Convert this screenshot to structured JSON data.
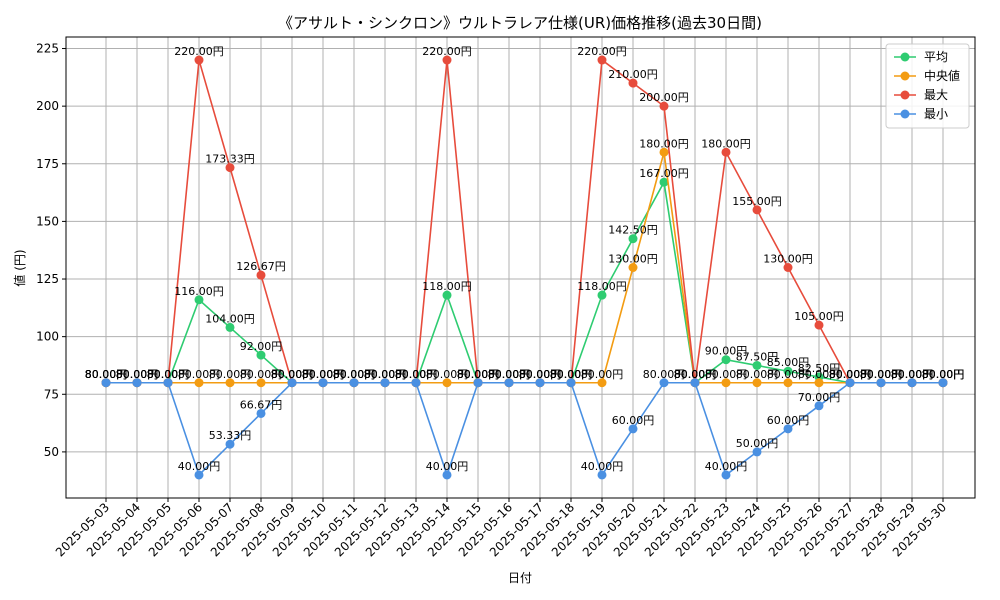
{
  "chart_data": {
    "type": "line",
    "title": "《アサルト・シンクロン》ウルトラレア仕様(UR)価格推移(過去30日間)",
    "xlabel": "日付",
    "ylabel": "値 (円)",
    "ylim": [
      30,
      230
    ],
    "yticks": [
      50,
      75,
      100,
      125,
      150,
      175,
      200,
      225
    ],
    "grid": true,
    "legend_position": "top-right",
    "value_suffix": "円",
    "categories": [
      "2025-05-03",
      "2025-05-04",
      "2025-05-05",
      "2025-05-06",
      "2025-05-07",
      "2025-05-08",
      "2025-05-09",
      "2025-05-10",
      "2025-05-11",
      "2025-05-12",
      "2025-05-13",
      "2025-05-14",
      "2025-05-15",
      "2025-05-16",
      "2025-05-17",
      "2025-05-18",
      "2025-05-19",
      "2025-05-20",
      "2025-05-21",
      "2025-05-22",
      "2025-05-23",
      "2025-05-24",
      "2025-05-25",
      "2025-05-26",
      "2025-05-27",
      "2025-05-28",
      "2025-05-29",
      "2025-05-30"
    ],
    "series": [
      {
        "name": "平均",
        "color": "#2ecc71",
        "values": [
          80,
          80,
          80,
          116,
          104,
          92,
          80,
          80,
          80,
          80,
          80,
          118,
          80,
          80,
          80,
          80,
          118,
          142.5,
          167,
          80,
          90,
          87.5,
          85,
          82.5,
          80,
          80,
          80,
          80
        ]
      },
      {
        "name": "中央値",
        "color": "#f39c12",
        "values": [
          80,
          80,
          80,
          80,
          80,
          80,
          80,
          80,
          80,
          80,
          80,
          80,
          80,
          80,
          80,
          80,
          80,
          130,
          180,
          80,
          80,
          80,
          80,
          80,
          80,
          80,
          80,
          80
        ]
      },
      {
        "name": "最大",
        "color": "#e74c3c",
        "values": [
          80,
          80,
          80,
          220,
          173.33,
          126.67,
          80,
          80,
          80,
          80,
          80,
          220,
          80,
          80,
          80,
          80,
          220,
          210,
          200,
          80,
          180,
          155,
          130,
          105,
          80,
          80,
          80,
          80
        ]
      },
      {
        "name": "最小",
        "color": "#4a90e2",
        "values": [
          80,
          80,
          80,
          40,
          53.33,
          66.67,
          80,
          80,
          80,
          80,
          80,
          40,
          80,
          80,
          80,
          80,
          40,
          60,
          80,
          80,
          40,
          50,
          60,
          70,
          80,
          80,
          80,
          80
        ]
      }
    ]
  }
}
